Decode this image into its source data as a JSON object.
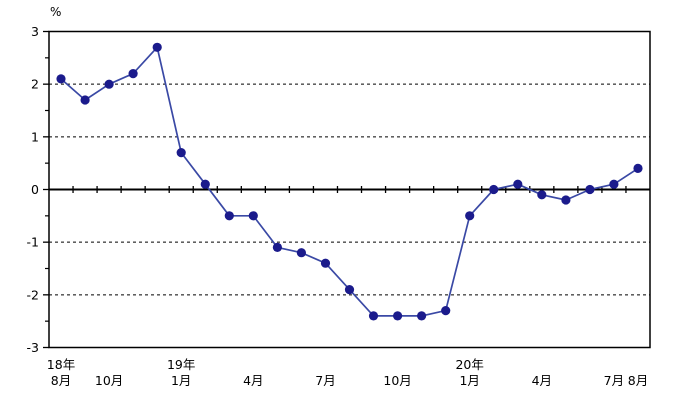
{
  "chart_data": {
    "type": "line",
    "title": "",
    "unit_label": "%",
    "ylim": [
      -3,
      3
    ],
    "yticks": [
      3,
      2,
      1,
      0,
      -1,
      -2,
      -3
    ],
    "gridlines": [
      2,
      1,
      -1,
      -2
    ],
    "grid_style": "dashed",
    "legend": "none",
    "x": [
      "2018-08",
      "2018-09",
      "2018-10",
      "2018-11",
      "2018-12",
      "2019-01",
      "2019-02",
      "2019-03",
      "2019-04",
      "2019-05",
      "2019-06",
      "2019-07",
      "2019-08",
      "2019-09",
      "2019-10",
      "2019-11",
      "2019-12",
      "2020-01",
      "2020-02",
      "2020-03",
      "2020-04",
      "2020-05",
      "2020-06",
      "2020-07",
      "2020-08"
    ],
    "values": [
      2.1,
      1.7,
      2.0,
      2.2,
      2.7,
      0.7,
      0.1,
      -0.5,
      -0.5,
      -1.1,
      -1.2,
      -1.4,
      -1.9,
      -2.4,
      -2.4,
      -2.4,
      -2.3,
      -0.5,
      0.0,
      0.1,
      -0.1,
      -0.2,
      0.0,
      0.1,
      0.4
    ],
    "x_month_labels": [
      {
        "index": 0,
        "label": "8月"
      },
      {
        "index": 2,
        "label": "10月"
      },
      {
        "index": 5,
        "label": "1月"
      },
      {
        "index": 8,
        "label": "4月"
      },
      {
        "index": 11,
        "label": "7月"
      },
      {
        "index": 14,
        "label": "10月"
      },
      {
        "index": 17,
        "label": "1月"
      },
      {
        "index": 20,
        "label": "4月"
      },
      {
        "index": 23,
        "label": "7月"
      },
      {
        "index": 24,
        "label": "8月"
      }
    ],
    "x_year_labels": [
      {
        "index": 0,
        "label": "18年"
      },
      {
        "index": 5,
        "label": "19年"
      },
      {
        "index": 17,
        "label": "20年"
      }
    ],
    "line_color": "#3a49a5",
    "marker_color": "#1b1b8c",
    "axis_color": "#000000",
    "background_color": "#ffffff"
  }
}
